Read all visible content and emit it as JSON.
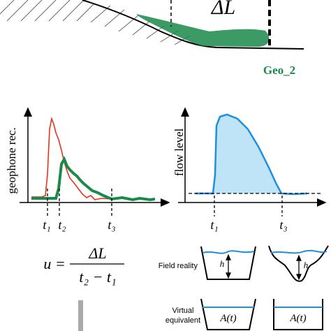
{
  "top": {
    "distance": "ΔL",
    "station": "Geo_2"
  },
  "left_plot": {
    "ylabel": "geophone rec.",
    "ticks": [
      "t₁",
      "t₂",
      "t₃"
    ]
  },
  "right_plot": {
    "ylabel": "flow level",
    "ticks": [
      "t₁",
      "t₃"
    ]
  },
  "formula": {
    "lhs": "u =",
    "numerator": "ΔL",
    "denominator": "t₂ − t₁"
  },
  "legend": {
    "field": "Field reality",
    "height": "h",
    "virtual": [
      "Virtual",
      "equivalent"
    ],
    "area": "A(t)"
  }
}
